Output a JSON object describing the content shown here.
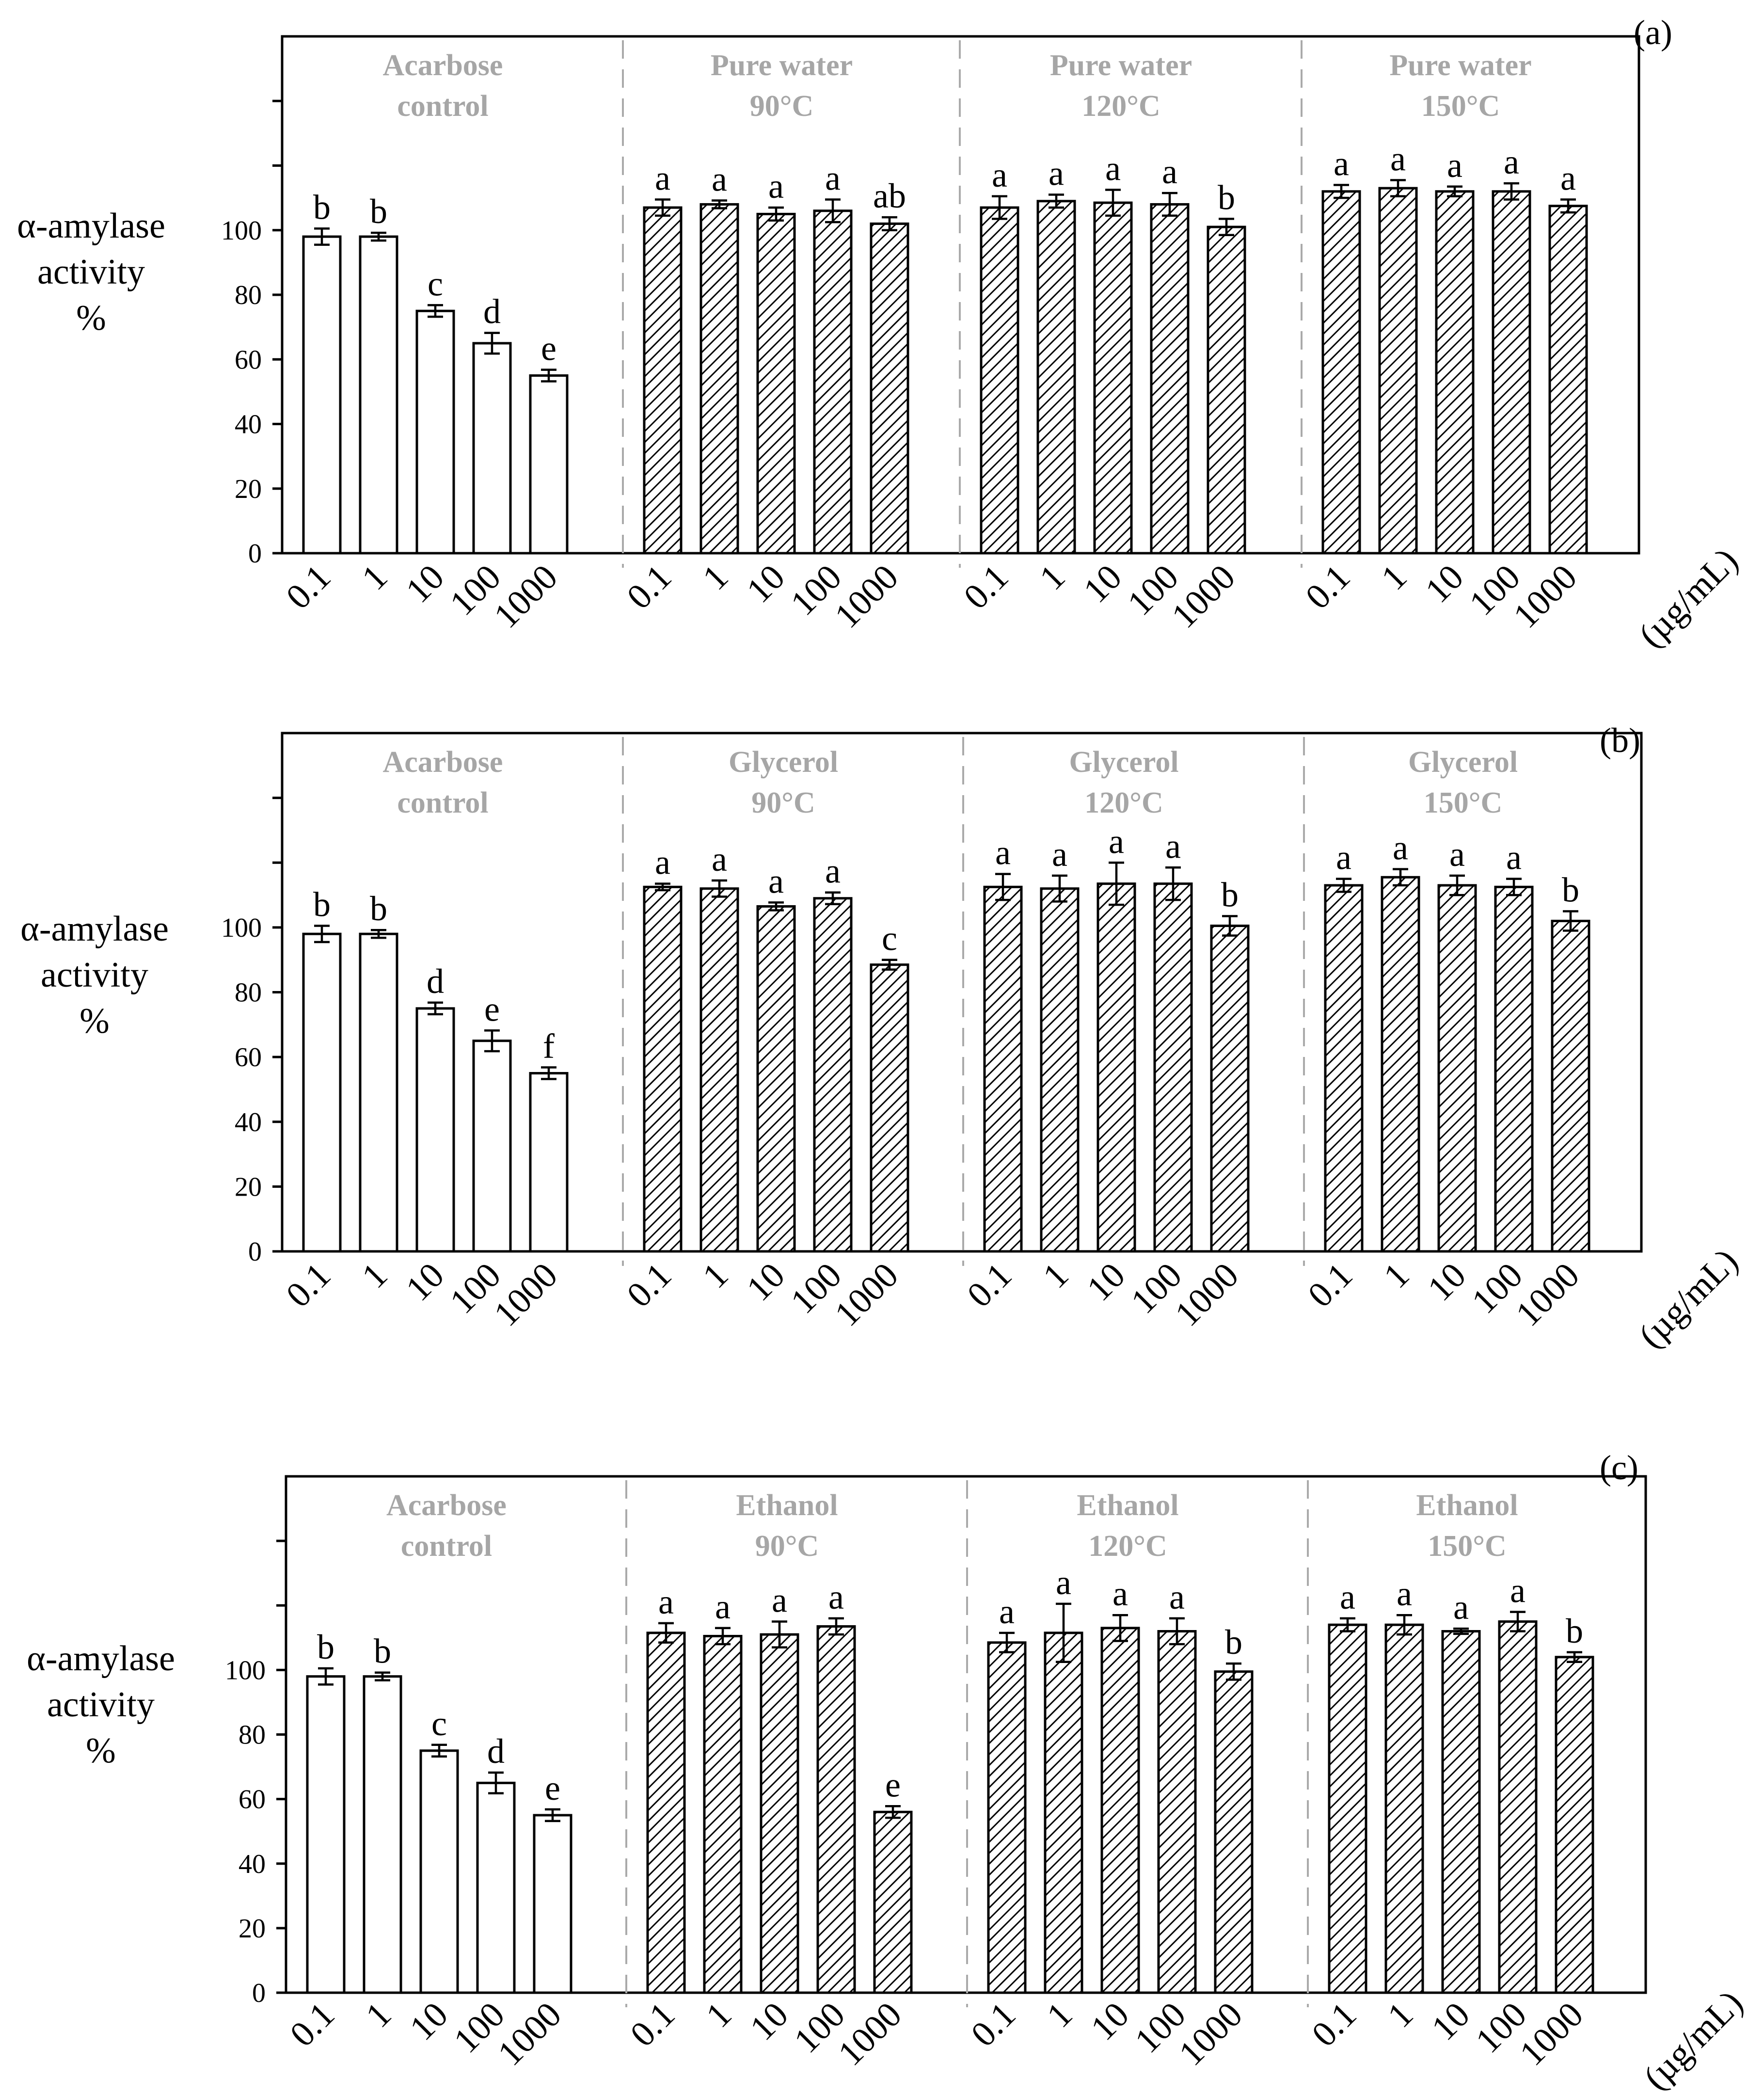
{
  "chart_data": [
    {
      "type": "bar",
      "panel_label": "(a)",
      "ylabel": [
        "α-amylase",
        "activity",
        "%"
      ],
      "ylim": [
        0,
        160
      ],
      "yticks": [
        0,
        20,
        40,
        60,
        80,
        100
      ],
      "x_unit": "(µg/mL)",
      "categories": [
        "0.1",
        "1",
        "10",
        "100",
        "1000"
      ],
      "groups": [
        {
          "title": [
            "Acarbose",
            "control"
          ],
          "fill": "open",
          "values": [
            98,
            98,
            75,
            65,
            55
          ],
          "errors": [
            2.5,
            1.2,
            1.8,
            3.2,
            1.8
          ],
          "letters": [
            "b",
            "b",
            "c",
            "d",
            "e"
          ]
        },
        {
          "title": [
            "Pure water",
            "90°C"
          ],
          "fill": "hatched",
          "values": [
            107,
            108,
            105,
            106,
            102
          ],
          "errors": [
            2.5,
            1.2,
            2,
            3.5,
            2
          ],
          "letters": [
            "a",
            "a",
            "a",
            "a",
            "ab"
          ]
        },
        {
          "title": [
            "Pure water",
            "120°C"
          ],
          "fill": "hatched",
          "values": [
            107,
            109,
            108.5,
            108,
            101
          ],
          "errors": [
            3.5,
            2,
            4,
            3.5,
            2.5
          ],
          "letters": [
            "a",
            "a",
            "a",
            "a",
            "b"
          ]
        },
        {
          "title": [
            "Pure water",
            "150°C"
          ],
          "fill": "hatched",
          "values": [
            112,
            113,
            112,
            112,
            107.5
          ],
          "errors": [
            2,
            2.5,
            1.5,
            2.5,
            2
          ],
          "letters": [
            "a",
            "a",
            "a",
            "a",
            "a"
          ]
        }
      ]
    },
    {
      "type": "bar",
      "panel_label": "(b)",
      "ylabel": [
        "α-amylase",
        "activity",
        "%"
      ],
      "ylim": [
        0,
        160
      ],
      "yticks": [
        0,
        20,
        40,
        60,
        80,
        100
      ],
      "x_unit": "(µg/mL)",
      "categories": [
        "0.1",
        "1",
        "10",
        "100",
        "1000"
      ],
      "groups": [
        {
          "title": [
            "Acarbose",
            "control"
          ],
          "fill": "open",
          "values": [
            98,
            98,
            75,
            65,
            55
          ],
          "errors": [
            2.5,
            1.2,
            1.8,
            3.2,
            1.8
          ],
          "letters": [
            "b",
            "b",
            "d",
            "e",
            "f"
          ]
        },
        {
          "title": [
            "Glycerol",
            "90°C"
          ],
          "fill": "hatched",
          "values": [
            112.5,
            112,
            106.5,
            109,
            88.5
          ],
          "errors": [
            1,
            2.5,
            1.2,
            1.8,
            1.5
          ],
          "letters": [
            "a",
            "a",
            "a",
            "a",
            "c"
          ]
        },
        {
          "title": [
            "Glycerol",
            "120°C"
          ],
          "fill": "hatched",
          "values": [
            112.5,
            112,
            113.5,
            113.5,
            100.5
          ],
          "errors": [
            4,
            4,
            6.5,
            5,
            3
          ],
          "letters": [
            "a",
            "a",
            "a",
            "a",
            "b"
          ]
        },
        {
          "title": [
            "Glycerol",
            "150°C"
          ],
          "fill": "hatched",
          "values": [
            113,
            115.5,
            113,
            112.5,
            102
          ],
          "errors": [
            2,
            2.5,
            3,
            2.5,
            3
          ],
          "letters": [
            "a",
            "a",
            "a",
            "a",
            "b"
          ]
        }
      ]
    },
    {
      "type": "bar",
      "panel_label": "(c)",
      "ylabel": [
        "α-amylase",
        "activity",
        "%"
      ],
      "ylim": [
        0,
        160
      ],
      "yticks": [
        0,
        20,
        40,
        60,
        80,
        100
      ],
      "x_unit": "(µg/mL)",
      "categories": [
        "0.1",
        "1",
        "10",
        "100",
        "1000"
      ],
      "groups": [
        {
          "title": [
            "Acarbose",
            "control"
          ],
          "fill": "open",
          "values": [
            98,
            98,
            75,
            65,
            55
          ],
          "errors": [
            2.5,
            1.2,
            1.8,
            3.2,
            1.8
          ],
          "letters": [
            "b",
            "b",
            "c",
            "d",
            "e"
          ]
        },
        {
          "title": [
            "Ethanol",
            "90°C"
          ],
          "fill": "hatched",
          "values": [
            111.5,
            110.5,
            111,
            113.5,
            56
          ],
          "errors": [
            3,
            2.5,
            4,
            2.5,
            1.8
          ],
          "letters": [
            "a",
            "a",
            "a",
            "a",
            "e"
          ]
        },
        {
          "title": [
            "Ethanol",
            "120°C"
          ],
          "fill": "hatched",
          "values": [
            108.5,
            111.5,
            113,
            112,
            99.5
          ],
          "errors": [
            3,
            9,
            4,
            4,
            2.5
          ],
          "letters": [
            "a",
            "a",
            "a",
            "a",
            "b"
          ]
        },
        {
          "title": [
            "Ethanol",
            "150°C"
          ],
          "fill": "hatched",
          "values": [
            114,
            114,
            112,
            115,
            104
          ],
          "errors": [
            2,
            3,
            0.8,
            3,
            1.5
          ],
          "letters": [
            "a",
            "a",
            "a",
            "a",
            "b"
          ]
        }
      ]
    }
  ]
}
